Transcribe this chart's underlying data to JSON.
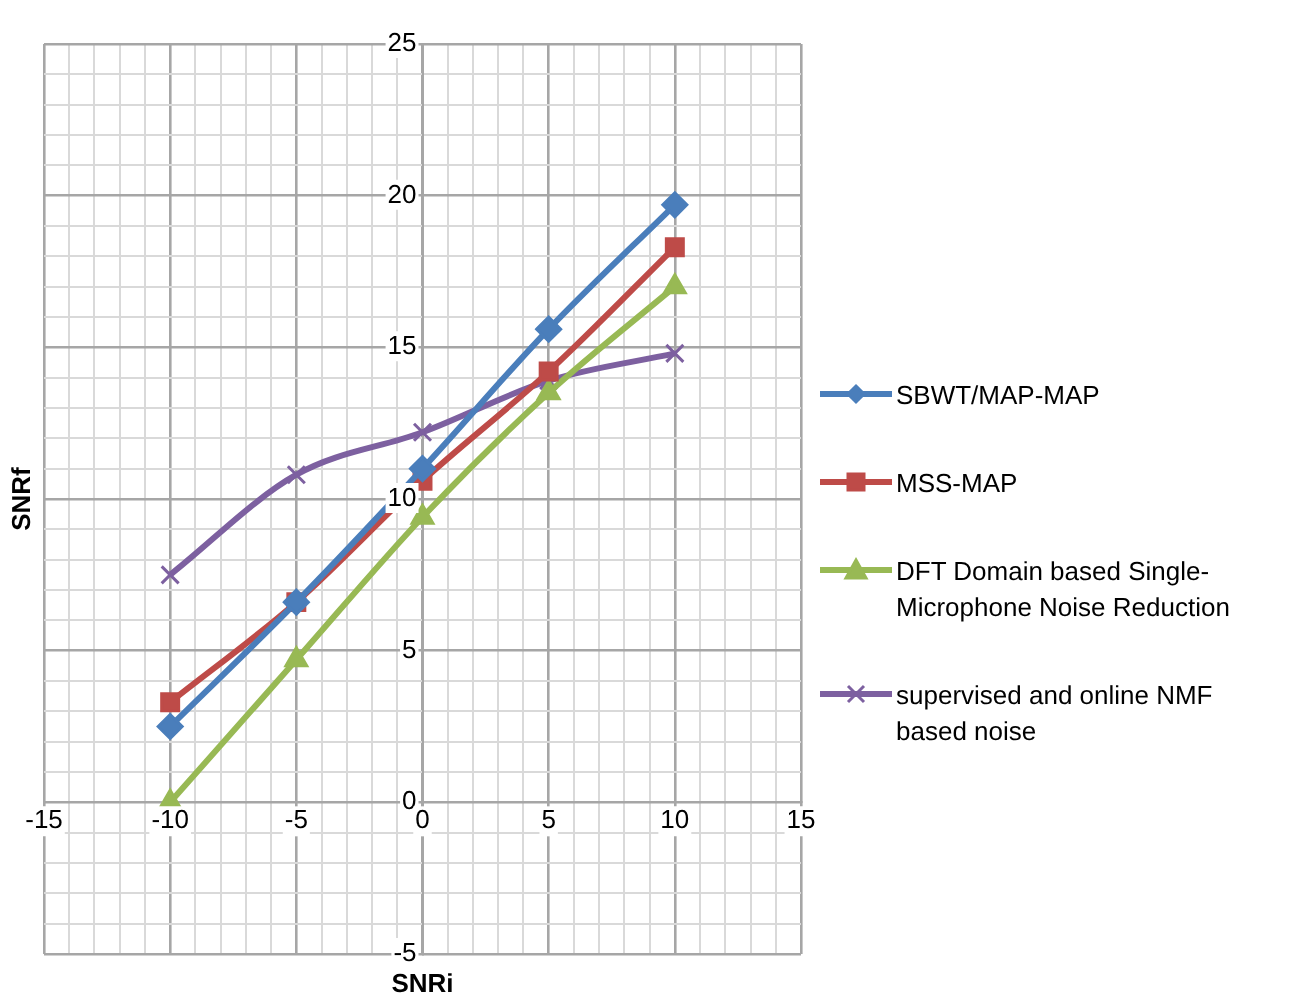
{
  "chart_data": {
    "type": "line",
    "xlabel": "SNRi",
    "ylabel": "SNRf",
    "x": [
      -10,
      -5,
      0,
      5,
      10
    ],
    "series": [
      {
        "name": "SBWT/MAP-MAP",
        "color": "#4a7ebb",
        "marker": "diamond",
        "values": [
          2.5,
          6.6,
          11,
          15.6,
          19.7
        ]
      },
      {
        "name": "MSS-MAP",
        "color": "#be4b48",
        "marker": "square",
        "values": [
          3.3,
          6.6,
          10.6,
          14.2,
          18.3
        ]
      },
      {
        "name": "DFT Domain based Single-Microphone Noise Reduction",
        "color": "#98b954",
        "marker": "triangle",
        "values": [
          0,
          4.7,
          9.4,
          13.5,
          17
        ]
      },
      {
        "name": "supervised and online NMF based noise",
        "color": "#7d60a0",
        "marker": "cross",
        "values": [
          7.5,
          10.8,
          12.2,
          13.9,
          14.8
        ]
      }
    ],
    "xlim": [
      -15,
      15
    ],
    "ylim": [
      -5,
      25
    ],
    "xticks": [
      -15,
      {
        "value": -14,
        "label": null
      },
      {
        "value": -13,
        "label": null
      },
      {
        "value": -12,
        "label": null
      },
      {
        "value": -11,
        "label": null
      },
      -10,
      {
        "value": -9,
        "label": null
      },
      {
        "value": -8,
        "label": null
      },
      {
        "value": -7,
        "label": null
      },
      {
        "value": -6,
        "label": null
      },
      -5,
      {
        "value": -4,
        "label": null
      },
      {
        "value": -3,
        "label": null
      },
      {
        "value": -2,
        "label": null
      },
      {
        "value": -1,
        "label": null
      },
      0,
      {
        "value": 1,
        "label": null
      },
      {
        "value": 2,
        "label": null
      },
      {
        "value": 3,
        "label": null
      },
      {
        "value": 4,
        "label": null
      },
      5,
      {
        "value": 6,
        "label": null
      },
      {
        "value": 7,
        "label": null
      },
      {
        "value": 8,
        "label": null
      },
      {
        "value": 9,
        "label": null
      },
      10,
      {
        "value": 11,
        "label": null
      },
      {
        "value": 12,
        "label": null
      },
      {
        "value": 13,
        "label": null
      },
      {
        "value": 14,
        "label": null
      },
      15
    ],
    "yticks": [
      -5,
      {
        "value": -4,
        "label": null
      },
      {
        "value": -3,
        "label": null
      },
      {
        "value": -2,
        "label": null
      },
      {
        "value": -1,
        "label": null
      },
      0,
      {
        "value": 1,
        "label": null
      },
      {
        "value": 2,
        "label": null
      },
      {
        "value": 3,
        "label": null
      },
      {
        "value": 4,
        "label": null
      },
      5,
      {
        "value": 6,
        "label": null
      },
      {
        "value": 7,
        "label": null
      },
      {
        "value": 8,
        "label": null
      },
      {
        "value": 9,
        "label": null
      },
      10,
      {
        "value": 11,
        "label": null
      },
      {
        "value": 12,
        "label": null
      },
      {
        "value": 13,
        "label": null
      },
      {
        "value": 14,
        "label": null
      },
      15,
      {
        "value": 16,
        "label": null
      },
      {
        "value": 17,
        "label": null
      },
      {
        "value": 18,
        "label": null
      },
      {
        "value": 19,
        "label": null
      },
      20,
      {
        "value": 21,
        "label": null
      },
      {
        "value": 22,
        "label": null
      },
      {
        "value": 23,
        "label": null
      },
      {
        "value": 24,
        "label": null
      },
      25
    ],
    "grid": true,
    "legend": "right",
    "line_style": "solid"
  }
}
